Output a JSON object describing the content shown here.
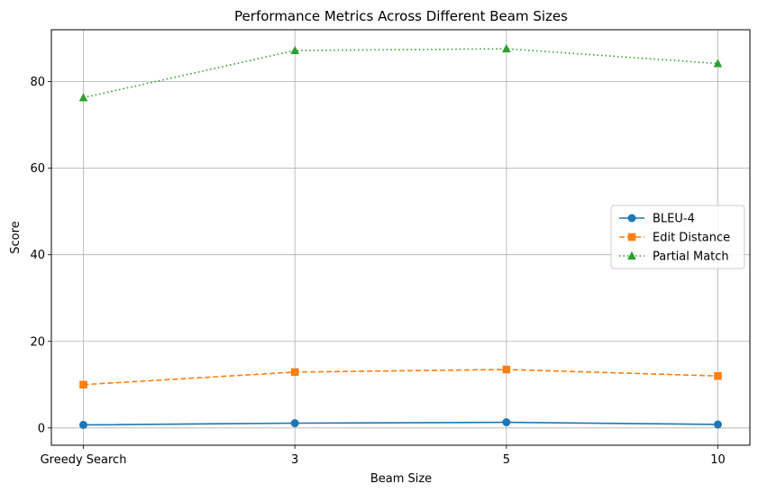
{
  "chart_data": {
    "type": "line",
    "title": "Performance Metrics Across Different Beam Sizes",
    "xlabel": "Beam Size",
    "ylabel": "Score",
    "categories": [
      "Greedy Search",
      "3",
      "5",
      "10"
    ],
    "ylim": [
      -4,
      92
    ],
    "yticks": [
      0,
      20,
      40,
      60,
      80
    ],
    "grid": true,
    "legend_position": "center-right",
    "series": [
      {
        "name": "BLEU-4",
        "values": [
          0.7,
          1.1,
          1.3,
          0.8
        ],
        "color": "#1f77b4",
        "marker": "circle",
        "linestyle": "solid"
      },
      {
        "name": "Edit Distance",
        "values": [
          10.0,
          12.9,
          13.5,
          12.0
        ],
        "color": "#ff7f0e",
        "marker": "square",
        "linestyle": "dashed"
      },
      {
        "name": "Partial Match",
        "values": [
          76.3,
          87.2,
          87.6,
          84.2
        ],
        "color": "#2ca02c",
        "marker": "triangle",
        "linestyle": "dotted"
      }
    ]
  }
}
